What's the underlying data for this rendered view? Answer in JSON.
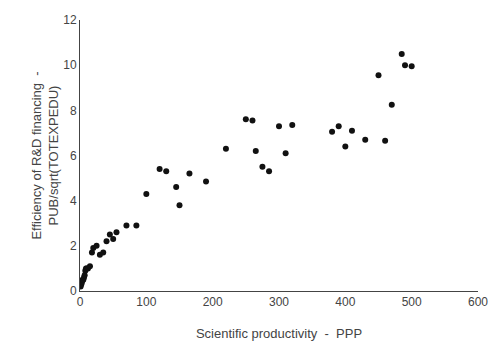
{
  "chart_data": {
    "type": "scatter",
    "x": [
      1,
      2,
      3,
      4,
      5,
      6,
      7,
      8,
      9,
      10,
      12,
      15,
      18,
      20,
      25,
      30,
      35,
      40,
      45,
      50,
      55,
      70,
      85,
      100,
      120,
      130,
      145,
      150,
      165,
      190,
      220,
      250,
      260,
      265,
      275,
      285,
      300,
      310,
      320,
      380,
      390,
      400,
      410,
      430,
      450,
      460,
      470,
      485,
      490,
      500
    ],
    "values": [
      0.2,
      0.3,
      0.4,
      0.5,
      0.5,
      0.6,
      0.7,
      0.9,
      1.0,
      1.0,
      1.0,
      1.1,
      1.7,
      1.9,
      2.0,
      1.6,
      1.7,
      2.2,
      2.5,
      2.3,
      2.6,
      2.9,
      2.9,
      4.3,
      5.4,
      5.3,
      4.6,
      3.8,
      5.2,
      4.85,
      6.3,
      7.6,
      7.55,
      6.2,
      5.5,
      5.3,
      7.3,
      6.1,
      7.35,
      7.05,
      7.3,
      6.4,
      7.1,
      6.7,
      9.55,
      6.65,
      8.25,
      10.5,
      10.0,
      9.95
    ],
    "xlabel": "Scientific productivity  -  PPP",
    "ylabel": "Efficiency of R&D financing  -\nPUB/sqrt(TOTEXPEDU)",
    "xlim": [
      0,
      600
    ],
    "ylim": [
      0,
      12
    ],
    "xticks": [
      0,
      100,
      200,
      300,
      400,
      500,
      600
    ],
    "yticks": [
      0,
      2,
      4,
      6,
      8,
      10,
      12
    ],
    "color": "#111111",
    "grid": false
  }
}
